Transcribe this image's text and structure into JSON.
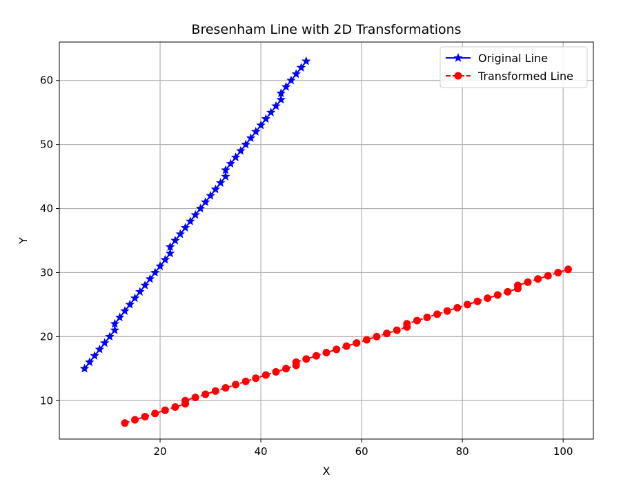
{
  "chart_data": {
    "type": "line",
    "title": "Bresenham Line with 2D Transformations",
    "xlabel": "X",
    "ylabel": "Y",
    "xlim": [
      0,
      106
    ],
    "ylim": [
      4,
      66
    ],
    "xticks": [
      20,
      40,
      60,
      80,
      100
    ],
    "yticks": [
      10,
      20,
      30,
      40,
      50,
      60
    ],
    "grid": true,
    "legend_position": "top-right",
    "series": [
      {
        "name": "Original Line",
        "color": "#0000ff",
        "marker": "star",
        "linestyle": "solid",
        "points": [
          [
            5,
            15
          ],
          [
            6,
            16
          ],
          [
            7,
            17
          ],
          [
            8,
            18
          ],
          [
            9,
            19
          ],
          [
            10,
            20
          ],
          [
            11,
            21
          ],
          [
            11,
            22
          ],
          [
            12,
            23
          ],
          [
            13,
            24
          ],
          [
            14,
            25
          ],
          [
            15,
            26
          ],
          [
            16,
            27
          ],
          [
            17,
            28
          ],
          [
            18,
            29
          ],
          [
            19,
            30
          ],
          [
            20,
            31
          ],
          [
            21,
            32
          ],
          [
            22,
            33
          ],
          [
            22,
            34
          ],
          [
            23,
            35
          ],
          [
            24,
            36
          ],
          [
            25,
            37
          ],
          [
            26,
            38
          ],
          [
            27,
            39
          ],
          [
            28,
            40
          ],
          [
            29,
            41
          ],
          [
            30,
            42
          ],
          [
            31,
            43
          ],
          [
            32,
            44
          ],
          [
            33,
            45
          ],
          [
            33,
            46
          ],
          [
            34,
            47
          ],
          [
            35,
            48
          ],
          [
            36,
            49
          ],
          [
            37,
            50
          ],
          [
            38,
            51
          ],
          [
            39,
            52
          ],
          [
            40,
            53
          ],
          [
            41,
            54
          ],
          [
            42,
            55
          ],
          [
            43,
            56
          ],
          [
            44,
            57
          ],
          [
            44,
            58
          ],
          [
            45,
            59
          ],
          [
            46,
            60
          ],
          [
            47,
            61
          ],
          [
            48,
            62
          ],
          [
            49,
            63
          ]
        ]
      },
      {
        "name": "Transformed Line",
        "color": "#ff0000",
        "marker": "circle",
        "linestyle": "dashed",
        "points": [
          [
            13,
            6.5
          ],
          [
            15,
            7
          ],
          [
            17,
            7.5
          ],
          [
            19,
            8
          ],
          [
            21,
            8.5
          ],
          [
            23,
            9
          ],
          [
            25,
            9.5
          ],
          [
            25,
            10
          ],
          [
            27,
            10.5
          ],
          [
            29,
            11
          ],
          [
            31,
            11.5
          ],
          [
            33,
            12
          ],
          [
            35,
            12.5
          ],
          [
            37,
            13
          ],
          [
            39,
            13.5
          ],
          [
            41,
            14
          ],
          [
            43,
            14.5
          ],
          [
            45,
            15
          ],
          [
            47,
            15.5
          ],
          [
            47,
            16
          ],
          [
            49,
            16.5
          ],
          [
            51,
            17
          ],
          [
            53,
            17.5
          ],
          [
            55,
            18
          ],
          [
            57,
            18.5
          ],
          [
            59,
            19
          ],
          [
            61,
            19.5
          ],
          [
            63,
            20
          ],
          [
            65,
            20.5
          ],
          [
            67,
            21
          ],
          [
            69,
            21.5
          ],
          [
            69,
            22
          ],
          [
            71,
            22.5
          ],
          [
            73,
            23
          ],
          [
            75,
            23.5
          ],
          [
            77,
            24
          ],
          [
            79,
            24.5
          ],
          [
            81,
            25
          ],
          [
            83,
            25.5
          ],
          [
            85,
            26
          ],
          [
            87,
            26.5
          ],
          [
            89,
            27
          ],
          [
            91,
            27.5
          ],
          [
            91,
            28
          ],
          [
            93,
            28.5
          ],
          [
            95,
            29
          ],
          [
            97,
            29.5
          ],
          [
            99,
            30
          ],
          [
            101,
            30.5
          ]
        ]
      }
    ]
  }
}
